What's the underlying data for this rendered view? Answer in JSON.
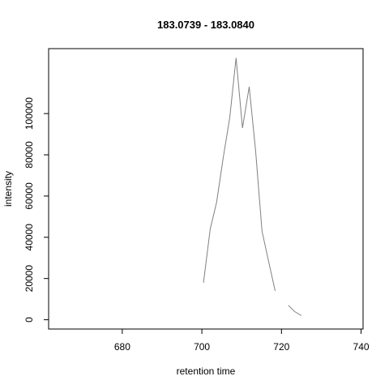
{
  "chart_data": {
    "type": "line",
    "title": "183.0739 - 183.0840",
    "xlabel": "retention time",
    "ylabel": "intensity",
    "xlim": [
      661.5,
      740.5
    ],
    "ylim": [
      -4500,
      131500
    ],
    "xticks": [
      680,
      700,
      720,
      740
    ],
    "xtick_labels": [
      "680",
      "700",
      "720",
      "740"
    ],
    "yticks": [
      0,
      20000,
      40000,
      60000,
      80000,
      100000
    ],
    "ytick_labels": [
      "0",
      "20000",
      "40000",
      "60000",
      "80000",
      "100000"
    ],
    "grid": false,
    "line_color": "#808080",
    "segments": [
      {
        "x": [
          700.4,
          702.1,
          703.7,
          705.4,
          707.0,
          708.6,
          710.2,
          711.9,
          713.5,
          715.1,
          716.8,
          718.4
        ],
        "y": [
          18000,
          44000,
          57000,
          79000,
          98000,
          127000,
          93000,
          113000,
          82000,
          43000,
          28000,
          14000
        ]
      },
      {
        "x": [
          721.7,
          723.3,
          725.0
        ],
        "y": [
          7000,
          4000,
          2000
        ]
      }
    ]
  }
}
